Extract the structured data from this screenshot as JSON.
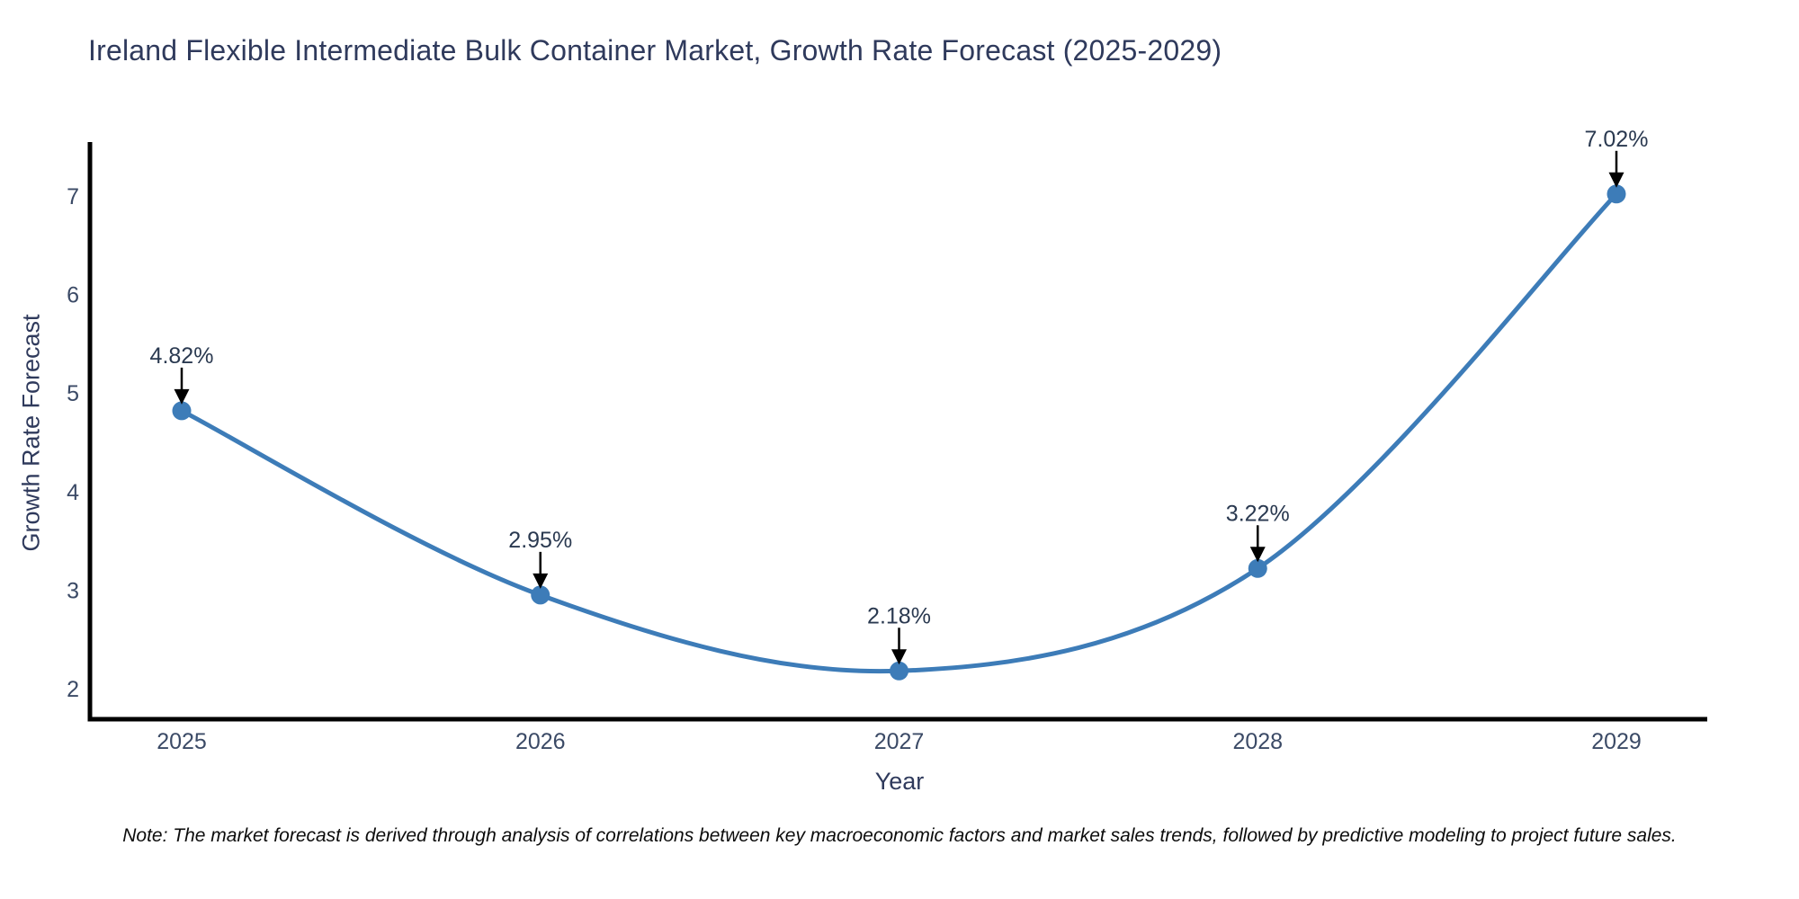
{
  "figure": {
    "note": "Note: The market forecast is derived through analysis of correlations between key macroeconomic factors and market sales trends, followed by predictive modeling to project future sales."
  },
  "chart_data": {
    "type": "line",
    "title": "Ireland Flexible Intermediate Bulk Container Market, Growth Rate Forecast (2025-2029)",
    "xlabel": "Year",
    "ylabel": "Growth Rate Forecast",
    "x": [
      2025,
      2026,
      2027,
      2028,
      2029
    ],
    "series": [
      {
        "name": "Growth Rate Forecast",
        "values": [
          4.82,
          2.95,
          2.18,
          3.22,
          7.02
        ]
      }
    ],
    "point_labels": [
      "4.82%",
      "2.95%",
      "2.18%",
      "3.22%",
      "7.02%"
    ],
    "yticks": [
      2,
      3,
      4,
      5,
      6,
      7
    ],
    "ylim": [
      1.69,
      7.55
    ],
    "grid": false,
    "legend": false,
    "line_shape": "spline",
    "colors": {
      "line": "#3d7cb8",
      "marker": "#3d7cb8",
      "axis": "#000000",
      "tick_label": "#3b4a66",
      "annotation_text": "#2a3950",
      "annotation_arrow": "#000000",
      "title_text": "#2f3a5c",
      "background": "#ffffff"
    }
  }
}
